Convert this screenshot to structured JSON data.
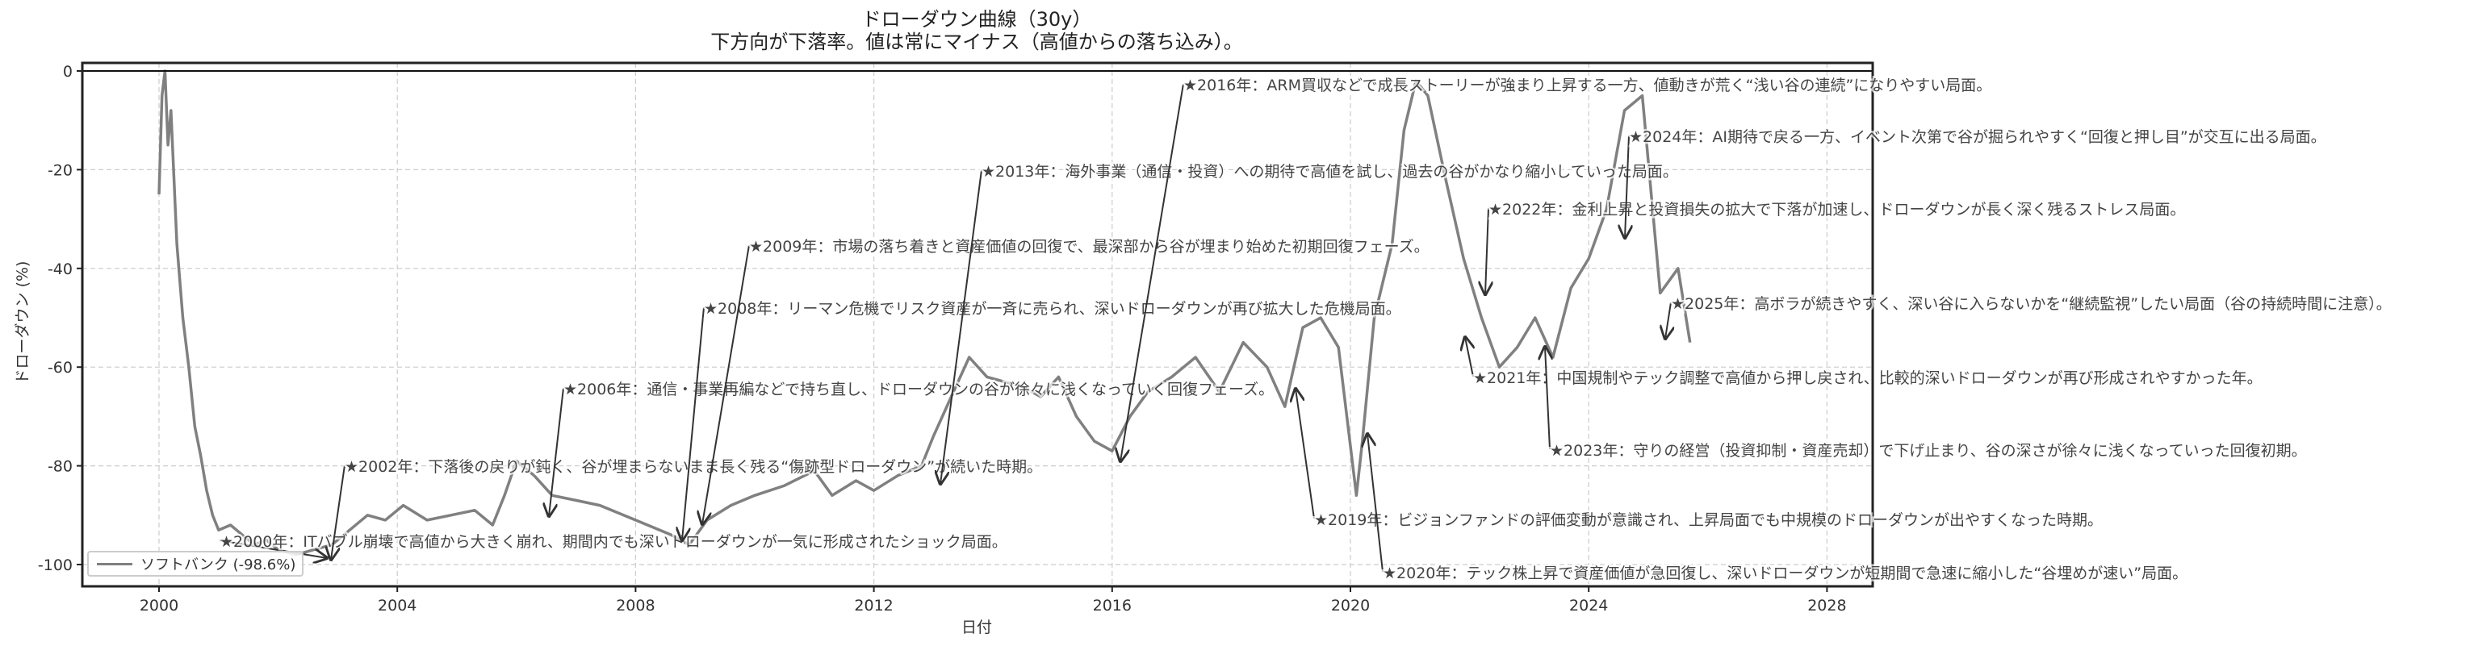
{
  "chart_data": {
    "type": "line",
    "title": "ドローダウン曲線（30y）",
    "subtitle": "下方向が下落率。値は常にマイナス（高値からの落ち込み）。",
    "xlabel": "日付",
    "ylabel": "ドローダウン (%)",
    "xlim": [
      1998.7,
      2028.9
    ],
    "ylim": [
      -103,
      2
    ],
    "x_ticks": [
      "2000",
      "2004",
      "2008",
      "2012",
      "2016",
      "2020",
      "2024",
      "2028"
    ],
    "y_ticks": [
      "0",
      "-20",
      "-40",
      "-60",
      "-80",
      "-100"
    ],
    "grid": true,
    "legend_position": "lower left",
    "series": [
      {
        "name": "ソフトバンク (-98.6%)",
        "color": "#808080",
        "x": [
          2000.0,
          2000.05,
          2000.1,
          2000.15,
          2000.2,
          2000.3,
          2000.4,
          2000.5,
          2000.6,
          2000.7,
          2000.8,
          2000.9,
          2001.0,
          2001.2,
          2001.4,
          2001.6,
          2001.8,
          2002.0,
          2002.3,
          2002.6,
          2002.9,
          2003.2,
          2003.5,
          2003.8,
          2004.1,
          2004.5,
          2004.9,
          2005.3,
          2005.6,
          2005.8,
          2006.0,
          2006.3,
          2006.6,
          2007.0,
          2007.4,
          2007.8,
          2008.2,
          2008.6,
          2008.9,
          2009.2,
          2009.6,
          2010.0,
          2010.5,
          2011.0,
          2011.3,
          2011.7,
          2012.0,
          2012.4,
          2012.8,
          2013.0,
          2013.3,
          2013.6,
          2013.9,
          2014.2,
          2014.5,
          2014.8,
          2015.1,
          2015.4,
          2015.7,
          2016.0,
          2016.3,
          2016.6,
          2017.0,
          2017.4,
          2017.8,
          2018.2,
          2018.6,
          2018.9,
          2019.2,
          2019.5,
          2019.8,
          2020.1,
          2020.2,
          2020.4,
          2020.7,
          2020.9,
          2021.1,
          2021.3,
          2021.6,
          2021.9,
          2022.2,
          2022.5,
          2022.8,
          2023.1,
          2023.4,
          2023.7,
          2024.0,
          2024.3,
          2024.6,
          2024.9,
          2025.2,
          2025.5,
          2025.7
        ],
        "values": [
          -25,
          -5,
          0,
          -15,
          -8,
          -35,
          -50,
          -60,
          -72,
          -78,
          -85,
          -90,
          -93,
          -92,
          -94,
          -96,
          -95,
          -97,
          -98,
          -97,
          -96,
          -93,
          -90,
          -91,
          -88,
          -91,
          -90,
          -89,
          -92,
          -86,
          -79,
          -82,
          -86,
          -87,
          -88,
          -90,
          -92,
          -94,
          -96,
          -91,
          -88,
          -86,
          -84,
          -81,
          -86,
          -83,
          -85,
          -82,
          -80,
          -74,
          -66,
          -58,
          -62,
          -63,
          -64,
          -66,
          -62,
          -70,
          -75,
          -77,
          -70,
          -65,
          -62,
          -58,
          -65,
          -55,
          -60,
          -68,
          -52,
          -50,
          -56,
          -86,
          -75,
          -50,
          -35,
          -12,
          -2,
          -5,
          -22,
          -38,
          -50,
          -60,
          -56,
          -50,
          -58,
          -44,
          -38,
          -28,
          -8,
          -5,
          -45,
          -40,
          -55
        ]
      }
    ],
    "annotations": [
      {
        "year": "2000",
        "text": "★2000年：ITバブル崩壊で高値から大きく崩れ、期間内でも深いドローダウンが一気に形成されたショック局面。"
      },
      {
        "year": "2002",
        "text": "★2002年：下落後の戻りが鈍く、谷が埋まらないまま長く残る“傷跡型ドローダウン”が続いた時期。"
      },
      {
        "year": "2006",
        "text": "★2006年：通信・事業再編などで持ち直し、ドローダウンの谷が徐々に浅くなっていく回復フェーズ。"
      },
      {
        "year": "2008",
        "text": "★2008年：リーマン危機でリスク資産が一斉に売られ、深いドローダウンが再び拡大した危機局面。"
      },
      {
        "year": "2009",
        "text": "★2009年：市場の落ち着きと資産価値の回復で、最深部から谷が埋まり始めた初期回復フェーズ。"
      },
      {
        "year": "2013",
        "text": "★2013年：海外事業（通信・投資）への期待で高値を試し、過去の谷がかなり縮小していった局面。"
      },
      {
        "year": "2016",
        "text": "★2016年：ARM買収などで成長ストーリーが強まり上昇する一方、値動きが荒く“浅い谷の連続”になりやすい局面。"
      },
      {
        "year": "2019",
        "text": "★2019年：ビジョンファンドの評価変動が意識され、上昇局面でも中規模のドローダウンが出やすくなった時期。"
      },
      {
        "year": "2020",
        "text": "★2020年：テック株上昇で資産価値が急回復し、深いドローダウンが短期間で急速に縮小した“谷埋めが速い”局面。"
      },
      {
        "year": "2021",
        "text": "★2021年：中国規制やテック調整で高値から押し戻され、比較的深いドローダウンが再び形成されやすかった年。"
      },
      {
        "year": "2022",
        "text": "★2022年：金利上昇と投資損失の拡大で下落が加速し、ドローダウンが長く深く残るストレス局面。"
      },
      {
        "year": "2023",
        "text": "★2023年：守りの経営（投資抑制・資産売却）で下げ止まり、谷の深さが徐々に浅くなっていった回復初期。"
      },
      {
        "year": "2024",
        "text": "★2024年：AI期待で戻る一方、イベント次第で谷が掘られやすく“回復と押し目”が交互に出る局面。"
      },
      {
        "year": "2025",
        "text": "★2025年：高ボラが続きやすく、深い谷に入らないかを“継続監視”したい局面（谷の持続時間に注意）。"
      }
    ]
  },
  "legend": {
    "label": "ソフトバンク (-98.6%)"
  }
}
